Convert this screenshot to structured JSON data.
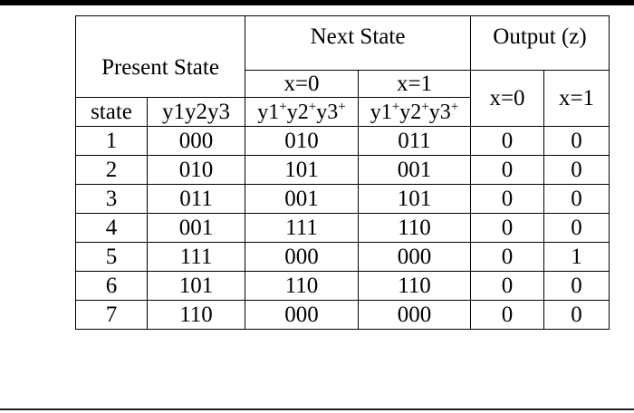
{
  "header": {
    "present_state": "Present State",
    "next_state": "Next State",
    "output": "Output (z)",
    "next_x0": "x=0",
    "next_x1": "x=1",
    "out_x0": "x=0",
    "out_x1": "x=1",
    "col_state": "state",
    "col_y": "y1y2y3",
    "sub_next_x0": "y1+y2+y3+",
    "sub_next_x1": "y1+y2+y3+"
  },
  "rows": [
    {
      "state": "1",
      "y": "000",
      "next0": "010",
      "next1": "011",
      "z0": "0",
      "z1": "0"
    },
    {
      "state": "2",
      "y": "010",
      "next0": "101",
      "next1": "001",
      "z0": "0",
      "z1": "0"
    },
    {
      "state": "3",
      "y": "011",
      "next0": "001",
      "next1": "101",
      "z0": "0",
      "z1": "0"
    },
    {
      "state": "4",
      "y": "001",
      "next0": "111",
      "next1": "110",
      "z0": "0",
      "z1": "0"
    },
    {
      "state": "5",
      "y": "111",
      "next0": "000",
      "next1": "000",
      "z0": "0",
      "z1": "1"
    },
    {
      "state": "6",
      "y": "101",
      "next0": "110",
      "next1": "110",
      "z0": "0",
      "z1": "0"
    },
    {
      "state": "7",
      "y": "110",
      "next0": "000",
      "next1": "000",
      "z0": "0",
      "z1": "0"
    }
  ]
}
